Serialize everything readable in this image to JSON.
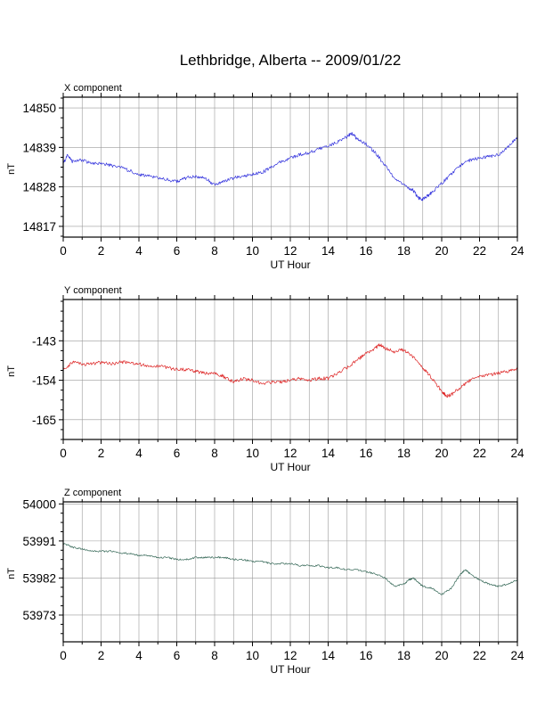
{
  "title": "Lethbridge, Alberta -- 2009/01/22",
  "chart_data": [
    {
      "type": "line",
      "title": "X component",
      "xlabel": "UT Hour",
      "ylabel": "nT",
      "xlim": [
        0,
        24
      ],
      "ylim": [
        14814,
        14853
      ],
      "xticks": [
        0,
        2,
        4,
        6,
        8,
        10,
        12,
        14,
        16,
        18,
        20,
        22,
        24
      ],
      "yticks": [
        14817,
        14828,
        14839,
        14850
      ],
      "grid": true,
      "series": [
        {
          "color": "#3333dd",
          "x": [
            0,
            0.25,
            0.5,
            1,
            1.5,
            2,
            2.5,
            3,
            3.5,
            4,
            4.5,
            5,
            5.5,
            6,
            6.5,
            7,
            7.5,
            8,
            8.5,
            9,
            9.5,
            10,
            10.5,
            11,
            11.5,
            12,
            12.5,
            13,
            13.5,
            14,
            14.5,
            15,
            15.25,
            15.5,
            16,
            16.5,
            17,
            17.5,
            18,
            18.5,
            18.75,
            19,
            19.25,
            19.5,
            20,
            20.5,
            21,
            21.5,
            22,
            22.5,
            23,
            23.5,
            24
          ],
          "y": [
            14834.5,
            14837,
            14835,
            14835.5,
            14834.5,
            14834.5,
            14834,
            14833.5,
            14832.5,
            14831.5,
            14831,
            14830.5,
            14830,
            14829.5,
            14830.5,
            14831,
            14830.5,
            14828.5,
            14829.5,
            14830.5,
            14831,
            14831.5,
            14832,
            14833.5,
            14835,
            14836,
            14837,
            14837.5,
            14838.5,
            14839.5,
            14840.5,
            14842,
            14843,
            14841.5,
            14840,
            14837.5,
            14834,
            14830.5,
            14828.5,
            14827,
            14825,
            14824.5,
            14825.5,
            14826.5,
            14829,
            14831.5,
            14834,
            14835.5,
            14836,
            14836.5,
            14837,
            14839,
            14842
          ]
        }
      ]
    },
    {
      "type": "line",
      "title": "Y component",
      "xlabel": "UT Hour",
      "ylabel": "nT",
      "xlim": [
        0,
        24
      ],
      "ylim": [
        -170.5,
        -131.5
      ],
      "xticks": [
        0,
        2,
        4,
        6,
        8,
        10,
        12,
        14,
        16,
        18,
        20,
        22,
        24
      ],
      "yticks": [
        -165,
        -154,
        -143
      ],
      "grid": true,
      "series": [
        {
          "color": "#dd2222",
          "x": [
            0,
            0.5,
            1,
            1.5,
            2,
            2.5,
            3,
            3.5,
            4,
            4.5,
            5,
            5.5,
            6,
            6.5,
            7,
            7.5,
            8,
            8.5,
            9,
            9.5,
            10,
            10.5,
            11,
            11.5,
            12,
            12.5,
            13,
            13.5,
            14,
            14.5,
            15,
            15.5,
            16,
            16.5,
            16.75,
            17,
            17.5,
            18,
            18.5,
            19,
            19.5,
            20,
            20.25,
            20.5,
            21,
            21.5,
            22,
            22.5,
            23,
            23.5,
            24
          ],
          "y": [
            -151,
            -149,
            -149.5,
            -149.5,
            -149,
            -149.5,
            -149,
            -149,
            -149.5,
            -150,
            -150,
            -150.5,
            -151,
            -151,
            -151.5,
            -152,
            -152,
            -153,
            -154.5,
            -153.5,
            -154,
            -155,
            -154.5,
            -154.5,
            -154,
            -153.5,
            -154,
            -153.5,
            -153.5,
            -152,
            -150.5,
            -148.5,
            -146.5,
            -145,
            -144,
            -145,
            -146,
            -145.5,
            -147.5,
            -150.5,
            -153.5,
            -157,
            -158.5,
            -158,
            -156,
            -154,
            -153,
            -152.5,
            -152,
            -151.5,
            -151
          ]
        }
      ]
    },
    {
      "type": "line",
      "title": "Z component",
      "xlabel": "UT Hour",
      "ylabel": "nT",
      "xlim": [
        0,
        24
      ],
      "ylim": [
        53966.5,
        54000.5
      ],
      "xticks": [
        0,
        2,
        4,
        6,
        8,
        10,
        12,
        14,
        16,
        18,
        20,
        22,
        24
      ],
      "yticks": [
        53973,
        53982,
        53991,
        54000
      ],
      "grid": true,
      "series": [
        {
          "color": "#336655",
          "x": [
            0,
            0.5,
            1,
            1.5,
            2,
            2.5,
            3,
            3.5,
            4,
            4.5,
            5,
            5.5,
            6,
            6.5,
            7,
            7.5,
            8,
            8.5,
            9,
            9.5,
            10,
            10.5,
            11,
            11.5,
            12,
            12.5,
            13,
            13.5,
            14,
            14.5,
            15,
            15.5,
            16,
            16.5,
            17,
            17.5,
            18,
            18.25,
            18.5,
            18.75,
            19,
            19.5,
            20,
            20.5,
            21,
            21.25,
            21.5,
            22,
            22.5,
            23,
            23.5,
            24
          ],
          "y": [
            53990.5,
            53989.5,
            53989,
            53988.5,
            53988.5,
            53988.5,
            53988,
            53988,
            53987.5,
            53987.5,
            53987,
            53987,
            53986.5,
            53986.5,
            53987,
            53987,
            53987,
            53987,
            53986.5,
            53986.5,
            53986,
            53986,
            53985.5,
            53985.5,
            53985.5,
            53985,
            53985,
            53985,
            53984.5,
            53984.5,
            53984,
            53984,
            53983.5,
            53983,
            53982,
            53980,
            53980.5,
            53981.5,
            53982,
            53981,
            53980,
            53979.5,
            53978,
            53979.5,
            53983,
            53984,
            53983,
            53981.5,
            53980.5,
            53980,
            53980.5,
            53981.5
          ]
        }
      ]
    }
  ]
}
